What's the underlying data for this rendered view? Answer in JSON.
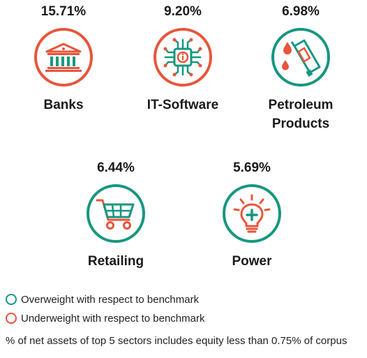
{
  "chart_data": {
    "type": "icon-stat",
    "sectors": [
      {
        "name_lines": [
          "Banks"
        ],
        "value": "15.71%",
        "status": "underweight",
        "icon": "bank-icon"
      },
      {
        "name_lines": [
          "IT-Software"
        ],
        "value": "9.20%",
        "status": "underweight",
        "icon": "microchip-icon"
      },
      {
        "name_lines": [
          "Petroleum",
          "Products"
        ],
        "value": "6.98%",
        "status": "overweight",
        "icon": "fuel-nozzle-icon"
      },
      {
        "name_lines": [
          "Retailing"
        ],
        "value": "6.44%",
        "status": "overweight",
        "icon": "shopping-cart-icon"
      },
      {
        "name_lines": [
          "Power"
        ],
        "value": "5.69%",
        "status": "overweight",
        "icon": "light-bulb-icon"
      }
    ],
    "legend": [
      {
        "label": "Overweight with respect to benchmark",
        "status": "overweight",
        "color": "#16977f"
      },
      {
        "label": "Underweight with respect to benchmark",
        "status": "underweight",
        "color": "#e8553b"
      }
    ],
    "footnote": "% of net assets of top 5 sectors includes equity less than 0.75% of corpus"
  },
  "colors": {
    "overweight": "#16977f",
    "underweight": "#e8553b"
  }
}
